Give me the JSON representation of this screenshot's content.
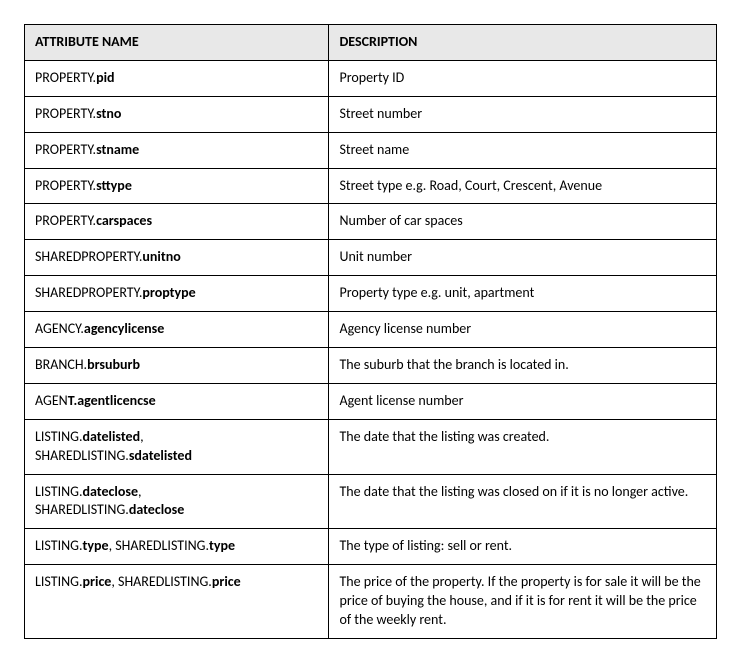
{
  "table": {
    "headers": {
      "attribute": "ATTRIBUTE NAME",
      "description": "DESCRIPTION"
    },
    "rows": [
      {
        "attrs": [
          [
            {
              "prefix": "PROPERTY.",
              "name": "pid"
            }
          ]
        ],
        "description": "Property ID"
      },
      {
        "attrs": [
          [
            {
              "prefix": "PROPERTY.",
              "name": "stno"
            }
          ]
        ],
        "description": "Street number"
      },
      {
        "attrs": [
          [
            {
              "prefix": "PROPERTY.",
              "name": "stname"
            }
          ]
        ],
        "description": "Street name"
      },
      {
        "attrs": [
          [
            {
              "prefix": "PROPERTY.",
              "name": "sttype"
            }
          ]
        ],
        "description": "Street type e.g. Road, Court, Crescent, Avenue"
      },
      {
        "attrs": [
          [
            {
              "prefix": "PROPERTY.",
              "name": "carspaces"
            }
          ]
        ],
        "description": "Number of car spaces"
      },
      {
        "attrs": [
          [
            {
              "prefix": "SHAREDPROPERTY.",
              "name": "unitno"
            }
          ]
        ],
        "description": "Unit number"
      },
      {
        "attrs": [
          [
            {
              "prefix": "SHAREDPROPERTY.",
              "name": "proptype"
            }
          ]
        ],
        "description": "Property type e.g. unit, apartment"
      },
      {
        "attrs": [
          [
            {
              "prefix": "AGENCY.",
              "name": "agencylicense"
            }
          ]
        ],
        "description": "Agency license number"
      },
      {
        "attrs": [
          [
            {
              "prefix": "BRANCH.",
              "name": "brsuburb"
            }
          ]
        ],
        "description": "The suburb that the branch is located in."
      },
      {
        "attrs": [
          [
            {
              "prefix": "AGEN",
              "boldPrefix": "T.",
              "name": "agentlicencse"
            }
          ]
        ],
        "description": "Agent license number"
      },
      {
        "attrs": [
          [
            {
              "prefix": "LISTING.",
              "name": "datelisted",
              "trailingComma": true
            }
          ],
          [
            {
              "prefix": "SHAREDLISTING.",
              "name": "sdatelisted"
            }
          ]
        ],
        "description": "The date that the listing was created."
      },
      {
        "attrs": [
          [
            {
              "prefix": "LISTING.",
              "name": "dateclose",
              "trailingComma": true
            }
          ],
          [
            {
              "prefix": "SHAREDLISTING.",
              "name": "dateclose"
            }
          ]
        ],
        "description": "The date that the listing was closed on if it is no longer active."
      },
      {
        "attrs": [
          [
            {
              "prefix": "LISTING.",
              "name": "type",
              "trailingComma": true,
              "trailingSpace": true
            },
            {
              "prefix": "SHAREDLISTING.",
              "name": "type"
            }
          ]
        ],
        "description": "The type of listing: sell or rent."
      },
      {
        "attrs": [
          [
            {
              "prefix": "LISTING.",
              "name": "price",
              "trailingComma": true,
              "trailingSpace": true
            },
            {
              "prefix": "SHAREDLISTING.",
              "name": "price"
            }
          ]
        ],
        "description": "The price of the property. If the property is for sale it will be the price of buying the house, and if it is for rent it will be the price of the weekly rent."
      }
    ]
  }
}
